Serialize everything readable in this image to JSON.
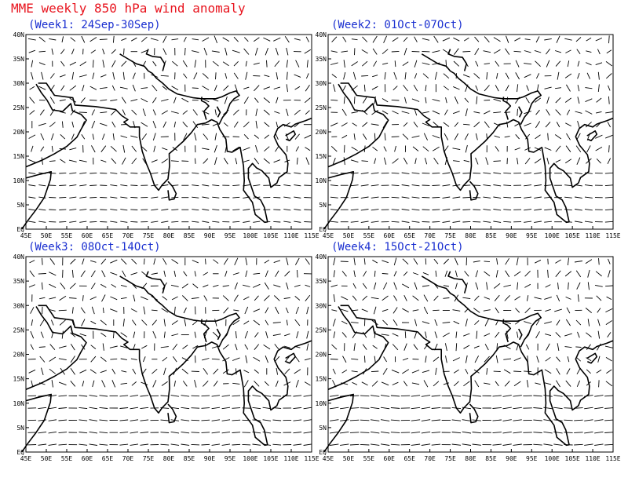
{
  "title": "MME weekly 850 hPa wind anomaly",
  "panels": [
    {
      "title": "(Week1: 24Sep-30Sep)"
    },
    {
      "title": "(Week2: 01Oct-07Oct)"
    },
    {
      "title": "(Week3: 08Oct-14Oct)"
    },
    {
      "title": "(Week4: 15Oct-21Oct)"
    }
  ],
  "lon_ticks": [
    "45E",
    "50E",
    "55E",
    "60E",
    "65E",
    "70E",
    "75E",
    "80E",
    "85E",
    "90E",
    "95E",
    "100E",
    "105E",
    "110E",
    "115E"
  ],
  "lat_ticks": [
    "EQ",
    "5N",
    "10N",
    "15N",
    "20N",
    "25N",
    "30N",
    "35N",
    "40N"
  ]
}
